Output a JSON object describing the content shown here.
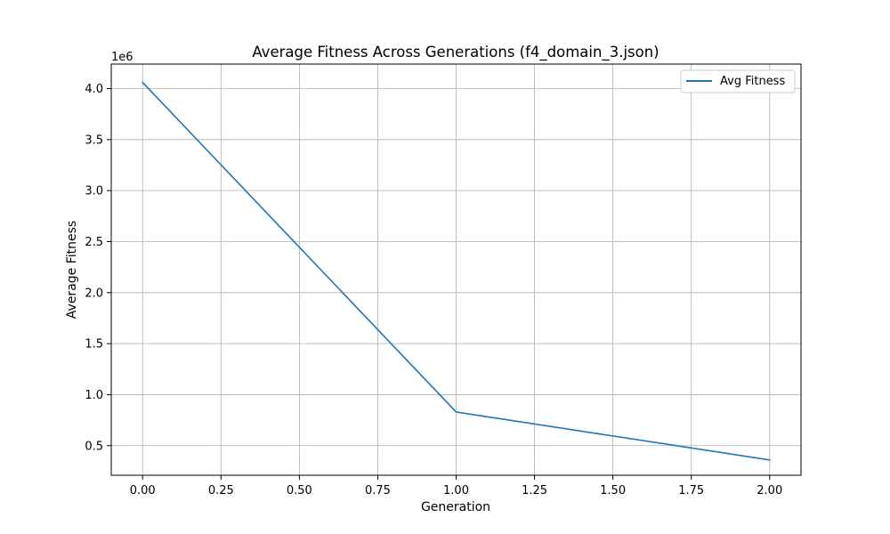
{
  "chart_data": {
    "type": "line",
    "title": "Average Fitness Across Generations (f4_domain_3.json)",
    "xlabel": "Generation",
    "ylabel": "Average Fitness",
    "y_offset_label": "1e6",
    "xlim": [
      -0.1,
      2.1
    ],
    "ylim": [
      0.21,
      4.24
    ],
    "x_ticks": [
      0.0,
      0.25,
      0.5,
      0.75,
      1.0,
      1.25,
      1.5,
      1.75,
      2.0
    ],
    "x_tick_labels": [
      "0.00",
      "0.25",
      "0.50",
      "0.75",
      "1.00",
      "1.25",
      "1.50",
      "1.75",
      "2.00"
    ],
    "y_ticks": [
      0.5,
      1.0,
      1.5,
      2.0,
      2.5,
      3.0,
      3.5,
      4.0
    ],
    "y_tick_labels": [
      "0.5",
      "1.0",
      "1.5",
      "2.0",
      "2.5",
      "3.0",
      "3.5",
      "4.0"
    ],
    "grid": true,
    "legend_position": "top-right",
    "series": [
      {
        "name": "Avg Fitness",
        "color": "#1f77b4",
        "x": [
          0,
          1,
          2
        ],
        "y": [
          4.06,
          0.83,
          0.36
        ]
      }
    ]
  }
}
